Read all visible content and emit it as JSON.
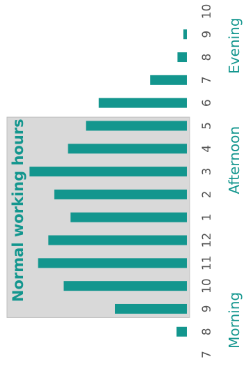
{
  "chart_data": {
    "type": "bar",
    "orientation": "rotated-90",
    "title": "",
    "xlabel": "",
    "ylabel": "",
    "categories": [
      "7",
      "8",
      "9",
      "10",
      "11",
      "12",
      "1",
      "2",
      "3",
      "4",
      "5",
      "6",
      "7",
      "8",
      "9",
      "10"
    ],
    "values": [
      0,
      1.2,
      8.4,
      14.4,
      17.4,
      16.2,
      13.6,
      15.5,
      18.4,
      13.9,
      11.8,
      10.3,
      4.3,
      1.1,
      0.4,
      0
    ],
    "ylim": [
      0,
      19
    ],
    "grid": false,
    "legend": "none",
    "shaded_region": {
      "label": "Normal working hours",
      "from_category": "9",
      "to_category": "5"
    },
    "period_labels": [
      {
        "label": "Morning",
        "center_category_index": 1.5
      },
      {
        "label": "Afternoon",
        "center_category_index": 8.5
      },
      {
        "label": "Evening",
        "center_category_index": 13.5
      }
    ],
    "colors": {
      "bar": "#13968e",
      "shade": "#d9d9d9",
      "shade_border": "#bdbdbd",
      "text": "#555555",
      "accent_text": "#13968e"
    }
  }
}
